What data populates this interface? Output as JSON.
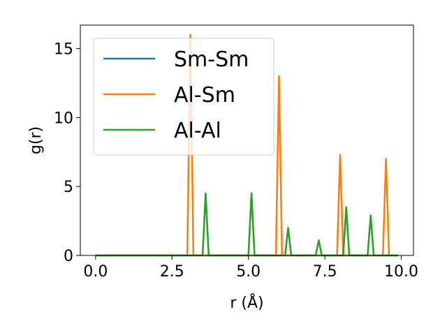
{
  "chart_data": {
    "type": "line",
    "title": "",
    "xlabel": "r (Å)",
    "ylabel": "g(r)",
    "xlim": [
      -0.5,
      10.4
    ],
    "ylim": [
      0,
      16.7
    ],
    "xticks": [
      0.0,
      2.5,
      5.0,
      7.5,
      10.0
    ],
    "xtick_labels": [
      "0.0",
      "2.5",
      "5.0",
      "7.5",
      "10.0"
    ],
    "yticks": [
      0,
      5,
      10,
      15
    ],
    "ytick_labels": [
      "0",
      "5",
      "10",
      "15"
    ],
    "grid": false,
    "legend_position": "top-left",
    "series": [
      {
        "name": "Sm-Sm",
        "color": "#1f77b4",
        "x": [
          0.0,
          9.9
        ],
        "y": [
          0.0,
          0.0
        ]
      },
      {
        "name": "Al-Sm",
        "color": "#ff7f0e",
        "x": [
          0.0,
          3.0,
          3.1,
          3.2,
          5.9,
          6.0,
          6.1,
          7.9,
          8.0,
          8.1,
          9.4,
          9.5,
          9.6,
          9.9
        ],
        "y": [
          0.0,
          0.0,
          16.0,
          0.0,
          0.0,
          13.0,
          0.0,
          0.0,
          7.3,
          0.0,
          0.0,
          7.0,
          0.0,
          0.0
        ]
      },
      {
        "name": "Al-Al",
        "color": "#2ca02c",
        "x": [
          0.0,
          3.5,
          3.6,
          3.7,
          5.0,
          5.1,
          5.2,
          6.2,
          6.3,
          6.4,
          7.2,
          7.3,
          7.4,
          8.1,
          8.2,
          8.3,
          8.9,
          9.0,
          9.1,
          9.9
        ],
        "y": [
          0.0,
          0.0,
          4.5,
          0.0,
          0.0,
          4.5,
          0.0,
          0.0,
          2.0,
          0.0,
          0.0,
          1.1,
          0.0,
          0.0,
          3.5,
          0.0,
          0.0,
          2.9,
          0.0,
          0.0
        ]
      }
    ]
  }
}
